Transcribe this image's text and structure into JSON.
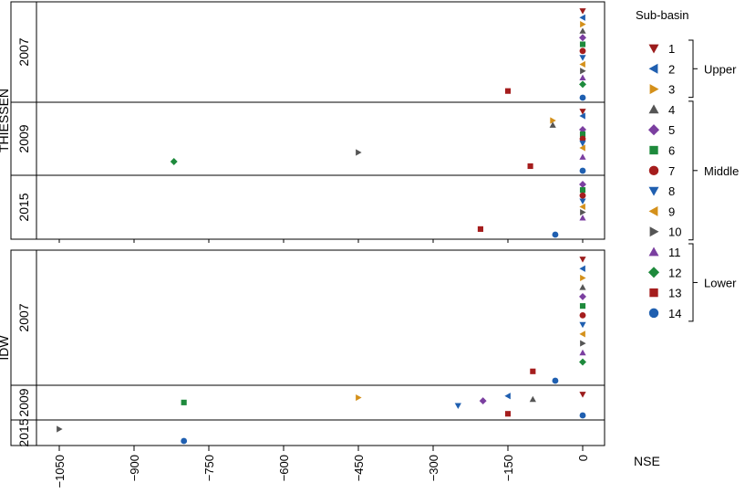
{
  "chart_data": {
    "type": "scatter",
    "xlabel": "NSE",
    "x_ticks": [
      -1050,
      -900,
      -750,
      -600,
      -450,
      -300,
      -150,
      0
    ],
    "xlim": [
      -1080,
      15
    ],
    "legend_title": "Sub-basin",
    "legend": [
      {
        "id": 1,
        "label": "1",
        "shape": "triangle-down",
        "color": "#9b1c1c"
      },
      {
        "id": 2,
        "label": "2",
        "shape": "triangle-left",
        "color": "#1f5fb0"
      },
      {
        "id": 3,
        "label": "3",
        "shape": "triangle-right",
        "color": "#d4901a"
      },
      {
        "id": 4,
        "label": "4",
        "shape": "triangle-up",
        "color": "#555555"
      },
      {
        "id": 5,
        "label": "5",
        "shape": "diamond",
        "color": "#7b3fa0"
      },
      {
        "id": 6,
        "label": "6",
        "shape": "square",
        "color": "#1e8a3c"
      },
      {
        "id": 7,
        "label": "7",
        "shape": "circle",
        "color": "#a51d1d"
      },
      {
        "id": 8,
        "label": "8",
        "shape": "triangle-down",
        "color": "#1f5fb0"
      },
      {
        "id": 9,
        "label": "9",
        "shape": "triangle-left",
        "color": "#d4901a"
      },
      {
        "id": 10,
        "label": "10",
        "shape": "triangle-right",
        "color": "#555555"
      },
      {
        "id": 11,
        "label": "11",
        "shape": "triangle-up",
        "color": "#7b3fa0"
      },
      {
        "id": 12,
        "label": "12",
        "shape": "diamond",
        "color": "#1e8a3c"
      },
      {
        "id": 13,
        "label": "13",
        "shape": "square",
        "color": "#a51d1d"
      },
      {
        "id": 14,
        "label": "14",
        "shape": "circle",
        "color": "#1f5fb0"
      }
    ],
    "groups": [
      {
        "label": "Upper",
        "from": 1,
        "to": 3
      },
      {
        "label": "Middle",
        "from": 4,
        "to": 10
      },
      {
        "label": "Lower",
        "from": 11,
        "to": 14
      }
    ],
    "panels": [
      {
        "method": "THIESSEN",
        "rows": [
          {
            "year": "2007",
            "points": [
              {
                "sb": 1,
                "x": 0
              },
              {
                "sb": 2,
                "x": 0
              },
              {
                "sb": 3,
                "x": 0
              },
              {
                "sb": 4,
                "x": 0
              },
              {
                "sb": 5,
                "x": 0
              },
              {
                "sb": 6,
                "x": 0
              },
              {
                "sb": 7,
                "x": 0
              },
              {
                "sb": 8,
                "x": 0
              },
              {
                "sb": 9,
                "x": 0
              },
              {
                "sb": 10,
                "x": 0
              },
              {
                "sb": 11,
                "x": 0
              },
              {
                "sb": 12,
                "x": 0
              },
              {
                "sb": 13,
                "x": -150
              },
              {
                "sb": 14,
                "x": 0
              }
            ]
          },
          {
            "year": "2009",
            "points": [
              {
                "sb": 1,
                "x": 0
              },
              {
                "sb": 2,
                "x": 0
              },
              {
                "sb": 3,
                "x": -60
              },
              {
                "sb": 4,
                "x": -60
              },
              {
                "sb": 5,
                "x": 0
              },
              {
                "sb": 6,
                "x": 0
              },
              {
                "sb": 7,
                "x": 0
              },
              {
                "sb": 8,
                "x": 0
              },
              {
                "sb": 9,
                "x": 0
              },
              {
                "sb": 10,
                "x": -450
              },
              {
                "sb": 11,
                "x": 0
              },
              {
                "sb": 12,
                "x": -820
              },
              {
                "sb": 13,
                "x": -105
              },
              {
                "sb": 14,
                "x": 0
              }
            ]
          },
          {
            "year": "2015",
            "points": [
              {
                "sb": 5,
                "x": 0
              },
              {
                "sb": 6,
                "x": 0
              },
              {
                "sb": 7,
                "x": 0
              },
              {
                "sb": 8,
                "x": 0
              },
              {
                "sb": 9,
                "x": 0
              },
              {
                "sb": 10,
                "x": 0
              },
              {
                "sb": 11,
                "x": 0
              },
              {
                "sb": 13,
                "x": -205
              },
              {
                "sb": 14,
                "x": -55
              }
            ]
          }
        ]
      },
      {
        "method": "IDW",
        "rows": [
          {
            "year": "2007",
            "points": [
              {
                "sb": 1,
                "x": 0
              },
              {
                "sb": 2,
                "x": 0
              },
              {
                "sb": 3,
                "x": 0
              },
              {
                "sb": 4,
                "x": 0
              },
              {
                "sb": 5,
                "x": 0
              },
              {
                "sb": 6,
                "x": 0
              },
              {
                "sb": 7,
                "x": 0
              },
              {
                "sb": 8,
                "x": 0
              },
              {
                "sb": 9,
                "x": 0
              },
              {
                "sb": 10,
                "x": 0
              },
              {
                "sb": 11,
                "x": 0
              },
              {
                "sb": 12,
                "x": 0
              },
              {
                "sb": 13,
                "x": -100
              },
              {
                "sb": 14,
                "x": -55
              }
            ]
          },
          {
            "year": "2009",
            "points": [
              {
                "sb": 1,
                "x": 0
              },
              {
                "sb": 2,
                "x": -150
              },
              {
                "sb": 3,
                "x": -450
              },
              {
                "sb": 4,
                "x": -100
              },
              {
                "sb": 5,
                "x": -200
              },
              {
                "sb": 6,
                "x": -800
              },
              {
                "sb": 8,
                "x": -250
              },
              {
                "sb": 13,
                "x": -150
              },
              {
                "sb": 14,
                "x": 0
              }
            ]
          },
          {
            "year": "2015",
            "points": [
              {
                "sb": 10,
                "x": -1050
              },
              {
                "sb": 14,
                "x": -800
              }
            ]
          }
        ]
      }
    ]
  }
}
